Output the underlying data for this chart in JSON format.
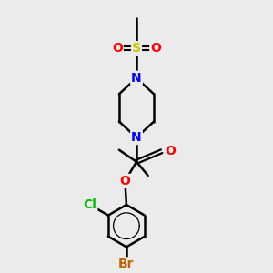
{
  "bg_color": "#ebebeb",
  "atom_colors": {
    "C": "#000000",
    "N": "#0000ff",
    "O": "#ff0000",
    "S": "#cccc00",
    "Cl": "#00bb00",
    "Br": "#bb6600",
    "H": "#000000"
  },
  "bond_color": "#000000",
  "bond_width": 1.8,
  "figsize": [
    3.0,
    3.0
  ],
  "dpi": 100,
  "font_size": 10,
  "font_size_small": 8
}
